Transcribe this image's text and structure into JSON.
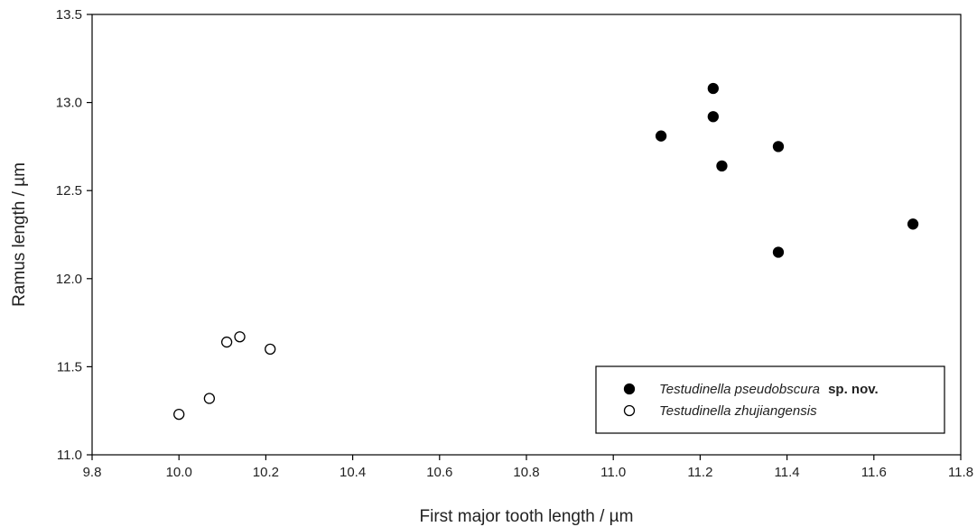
{
  "chart_data": {
    "type": "scatter",
    "xlabel": "First major tooth length / µm",
    "ylabel": "Ramus length / µm",
    "xlim": [
      9.8,
      11.8
    ],
    "ylim": [
      11.0,
      13.5
    ],
    "xticks": [
      "9.8",
      "10.0",
      "10.2",
      "10.4",
      "10.6",
      "10.8",
      "11.0",
      "11.2",
      "11.4",
      "11.6",
      "11.8"
    ],
    "yticks": [
      "11.0",
      "11.5",
      "12.0",
      "12.5",
      "13.0",
      "13.5"
    ],
    "grid": false,
    "legend_position": "lower-right",
    "series": [
      {
        "name": "Testudinella pseudobscura sp. nov.",
        "name_parts": {
          "italic": "Testudinella pseudobscura",
          "bold": "sp. nov."
        },
        "marker": "filled-circle",
        "color": "#000000",
        "points": [
          {
            "x": 11.11,
            "y": 12.81
          },
          {
            "x": 11.23,
            "y": 13.08
          },
          {
            "x": 11.23,
            "y": 12.92
          },
          {
            "x": 11.25,
            "y": 12.64
          },
          {
            "x": 11.38,
            "y": 12.75
          },
          {
            "x": 11.38,
            "y": 12.15
          },
          {
            "x": 11.69,
            "y": 12.31
          }
        ]
      },
      {
        "name": "Testudinella zhujiangensis",
        "name_parts": {
          "italic": "Testudinella zhujiangensis",
          "bold": ""
        },
        "marker": "open-circle",
        "color": "#000000",
        "points": [
          {
            "x": 10.0,
            "y": 11.23
          },
          {
            "x": 10.07,
            "y": 11.32
          },
          {
            "x": 10.11,
            "y": 11.64
          },
          {
            "x": 10.14,
            "y": 11.67
          },
          {
            "x": 10.21,
            "y": 11.6
          }
        ]
      }
    ]
  }
}
